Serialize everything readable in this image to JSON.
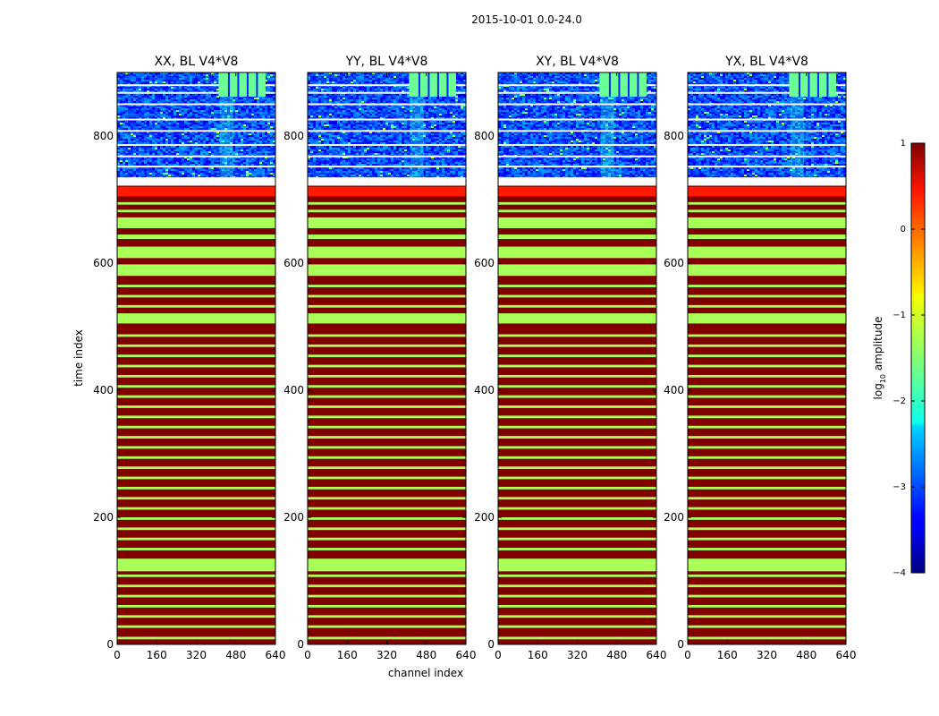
{
  "chart_data": {
    "type": "heatmap",
    "suptitle": "2015-10-01 0.0-24.0",
    "xlabel": "channel index",
    "ylabel": "time index",
    "xlim": [
      0,
      640
    ],
    "ylim": [
      0,
      900
    ],
    "xticks": [
      0,
      160,
      320,
      480,
      640
    ],
    "yticks": [
      0,
      200,
      400,
      600,
      800
    ],
    "panels": [
      {
        "title": "XX, BL V4*V8"
      },
      {
        "title": "YY, BL V4*V8"
      },
      {
        "title": "XY, BL V4*V8"
      },
      {
        "title": "YX, BL V4*V8"
      }
    ],
    "colorbar": {
      "label_prefix": "log",
      "label_sub": "10",
      "label_suffix": " amplitude",
      "range": [
        -4,
        1
      ],
      "ticks": [
        1,
        0,
        -1,
        -2,
        -3,
        -4
      ],
      "tick_labels": [
        "1",
        "0",
        "−1",
        "−2",
        "−3",
        "−4"
      ],
      "colormap": "jet"
    },
    "saturated_region": {
      "time_range": [
        0,
        722
      ],
      "base_log_amp": 1.0,
      "orange_band_log_amp": 0.25,
      "orange_band_time": [
        705,
        720
      ],
      "green_log_amp": -1.3,
      "green_bands_time": [
        [
          8,
          12
        ],
        [
          26,
          30
        ],
        [
          42,
          46
        ],
        [
          58,
          62
        ],
        [
          74,
          78
        ],
        [
          90,
          94
        ],
        [
          106,
          110
        ],
        [
          115,
          135
        ],
        [
          148,
          152
        ],
        [
          164,
          168
        ],
        [
          180,
          184
        ],
        [
          196,
          200
        ],
        [
          212,
          216
        ],
        [
          228,
          232
        ],
        [
          244,
          248
        ],
        [
          260,
          264
        ],
        [
          276,
          280
        ],
        [
          292,
          296
        ],
        [
          308,
          312
        ],
        [
          324,
          328
        ],
        [
          340,
          344
        ],
        [
          356,
          360
        ],
        [
          372,
          376
        ],
        [
          388,
          392
        ],
        [
          404,
          408
        ],
        [
          420,
          424
        ],
        [
          436,
          440
        ],
        [
          452,
          456
        ],
        [
          468,
          472
        ],
        [
          484,
          488
        ],
        [
          505,
          521
        ],
        [
          530,
          534
        ],
        [
          546,
          550
        ],
        [
          562,
          566
        ],
        [
          580,
          598
        ],
        [
          608,
          626
        ],
        [
          638,
          645
        ],
        [
          655,
          672
        ],
        [
          680,
          684
        ],
        [
          692,
          696
        ]
      ]
    },
    "noise_region": {
      "time_range": [
        735,
        900
      ],
      "mean_log_amp": -3.0,
      "flagged_lines_time": [
        752,
        768,
        786,
        808,
        826,
        850,
        868,
        880
      ],
      "rfi_block_channels": [
        410,
        600
      ],
      "rfi_block_time": [
        862,
        900
      ],
      "rfi_log_amp": -1.6
    }
  }
}
